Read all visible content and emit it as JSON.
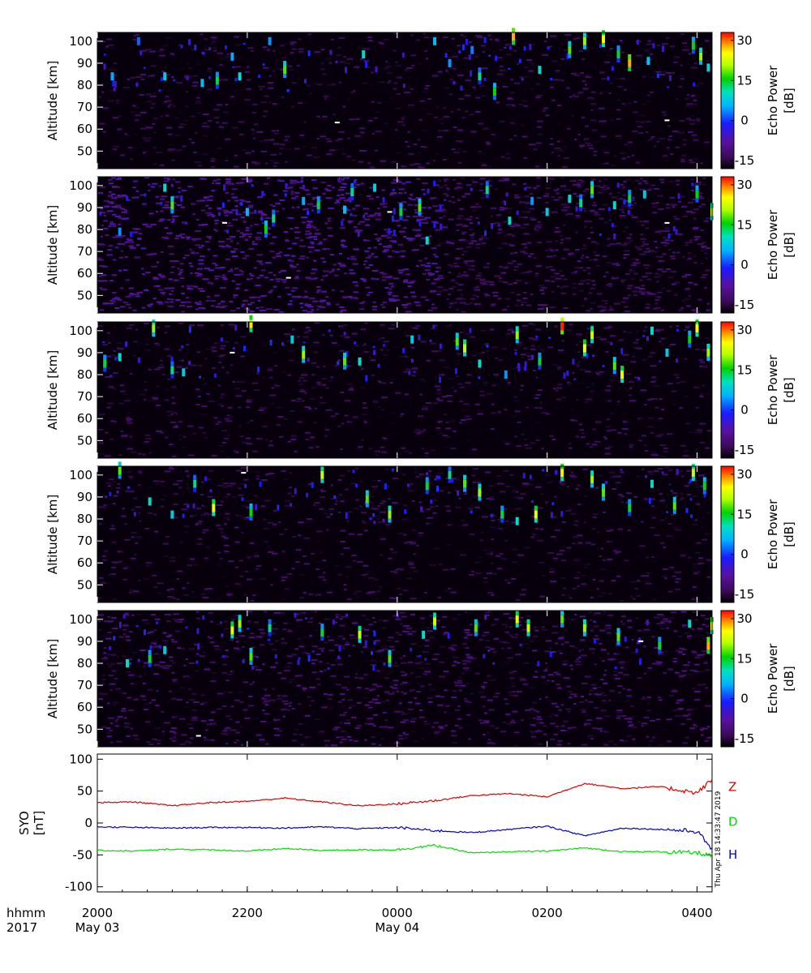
{
  "chart_data": [
    {
      "type": "heatmap",
      "panel": 1,
      "ylabel": "Altitude [km]",
      "yticks": [
        50,
        60,
        70,
        80,
        90,
        100
      ],
      "ylim": [
        42,
        104
      ],
      "xlim": [
        0,
        8
      ],
      "colorbar": {
        "label": "Echo Power [dB]",
        "ticks": [
          30,
          15,
          0,
          -15
        ],
        "range": [
          -18,
          33
        ]
      },
      "background_level": "low",
      "echoes": [
        {
          "t": 0.2,
          "alt": 84,
          "p": 5
        },
        {
          "t": 0.55,
          "alt": 100,
          "p": 2
        },
        {
          "t": 0.9,
          "alt": 84,
          "p": 8
        },
        {
          "t": 1.4,
          "alt": 81,
          "p": 6
        },
        {
          "t": 1.6,
          "alt": 82,
          "p": 14
        },
        {
          "t": 1.8,
          "alt": 93,
          "p": 5
        },
        {
          "t": 1.9,
          "alt": 84,
          "p": 10
        },
        {
          "t": 2.3,
          "alt": 100,
          "p": 4
        },
        {
          "t": 2.5,
          "alt": 87,
          "p": 18
        },
        {
          "t": 3.2,
          "alt": 63,
          "p": 33
        },
        {
          "t": 3.55,
          "alt": 94,
          "p": 10
        },
        {
          "t": 4.5,
          "alt": 100,
          "p": 6
        },
        {
          "t": 4.7,
          "alt": 90,
          "p": 4
        },
        {
          "t": 5.0,
          "alt": 96,
          "p": 3
        },
        {
          "t": 5.1,
          "alt": 84,
          "p": 12
        },
        {
          "t": 5.3,
          "alt": 77,
          "p": 16
        },
        {
          "t": 5.55,
          "alt": 102,
          "p": 28
        },
        {
          "t": 5.9,
          "alt": 87,
          "p": 10
        },
        {
          "t": 6.3,
          "alt": 96,
          "p": 18
        },
        {
          "t": 6.5,
          "alt": 100,
          "p": 20
        },
        {
          "t": 6.75,
          "alt": 101,
          "p": 25
        },
        {
          "t": 6.95,
          "alt": 94,
          "p": 14
        },
        {
          "t": 7.1,
          "alt": 90,
          "p": 28
        },
        {
          "t": 7.35,
          "alt": 91,
          "p": 7
        },
        {
          "t": 7.6,
          "alt": 64,
          "p": 33
        },
        {
          "t": 7.95,
          "alt": 98,
          "p": 15
        },
        {
          "t": 8.05,
          "alt": 93,
          "p": 20
        },
        {
          "t": 8.15,
          "alt": 88,
          "p": 9
        }
      ]
    },
    {
      "type": "heatmap",
      "panel": 2,
      "ylabel": "Altitude [km]",
      "yticks": [
        50,
        60,
        70,
        80,
        90,
        100
      ],
      "ylim": [
        42,
        104
      ],
      "xlim": [
        0,
        8
      ],
      "colorbar": {
        "label": "Echo Power [dB]",
        "ticks": [
          30,
          15,
          0,
          -15
        ],
        "range": [
          -18,
          33
        ]
      },
      "background_level": "elevated",
      "echoes": [
        {
          "t": 0.3,
          "alt": 79,
          "p": 4
        },
        {
          "t": 0.9,
          "alt": 99,
          "p": 10
        },
        {
          "t": 1.0,
          "alt": 91,
          "p": 18
        },
        {
          "t": 1.7,
          "alt": 83,
          "p": 33
        },
        {
          "t": 2.0,
          "alt": 88,
          "p": 6
        },
        {
          "t": 2.25,
          "alt": 80,
          "p": 16
        },
        {
          "t": 2.35,
          "alt": 85,
          "p": 12
        },
        {
          "t": 2.55,
          "alt": 58,
          "p": 33
        },
        {
          "t": 2.75,
          "alt": 93,
          "p": 5
        },
        {
          "t": 2.95,
          "alt": 91,
          "p": 14
        },
        {
          "t": 3.3,
          "alt": 89,
          "p": 7
        },
        {
          "t": 3.4,
          "alt": 97,
          "p": 12
        },
        {
          "t": 3.7,
          "alt": 99,
          "p": 8
        },
        {
          "t": 3.9,
          "alt": 88,
          "p": 33
        },
        {
          "t": 4.05,
          "alt": 88,
          "p": 14
        },
        {
          "t": 4.3,
          "alt": 90,
          "p": 18
        },
        {
          "t": 4.4,
          "alt": 75,
          "p": 10
        },
        {
          "t": 5.2,
          "alt": 98,
          "p": 12
        },
        {
          "t": 5.5,
          "alt": 84,
          "p": 10
        },
        {
          "t": 5.8,
          "alt": 93,
          "p": 4
        },
        {
          "t": 6.0,
          "alt": 88,
          "p": 8
        },
        {
          "t": 6.3,
          "alt": 94,
          "p": 10
        },
        {
          "t": 6.45,
          "alt": 92,
          "p": 12
        },
        {
          "t": 6.6,
          "alt": 98,
          "p": 18
        },
        {
          "t": 6.9,
          "alt": 91,
          "p": 10
        },
        {
          "t": 7.1,
          "alt": 94,
          "p": 14
        },
        {
          "t": 7.3,
          "alt": 96,
          "p": 8
        },
        {
          "t": 7.6,
          "alt": 83,
          "p": 33
        },
        {
          "t": 8.0,
          "alt": 96,
          "p": 15
        },
        {
          "t": 8.2,
          "alt": 88,
          "p": 22
        }
      ]
    },
    {
      "type": "heatmap",
      "panel": 3,
      "ylabel": "Altitude [km]",
      "yticks": [
        50,
        60,
        70,
        80,
        90,
        100
      ],
      "ylim": [
        42,
        104
      ],
      "xlim": [
        0,
        8
      ],
      "colorbar": {
        "label": "Echo Power [dB]",
        "ticks": [
          30,
          15,
          0,
          -15
        ],
        "range": [
          -18,
          33
        ]
      },
      "background_level": "low",
      "echoes": [
        {
          "t": 0.1,
          "alt": 85,
          "p": 14
        },
        {
          "t": 0.3,
          "alt": 88,
          "p": 10
        },
        {
          "t": 0.75,
          "alt": 101,
          "p": 20
        },
        {
          "t": 1.0,
          "alt": 82,
          "p": 12
        },
        {
          "t": 1.15,
          "alt": 81,
          "p": 8
        },
        {
          "t": 1.8,
          "alt": 90,
          "p": 33
        },
        {
          "t": 2.05,
          "alt": 103,
          "p": 26
        },
        {
          "t": 2.6,
          "alt": 96,
          "p": 8
        },
        {
          "t": 2.75,
          "alt": 89,
          "p": 20
        },
        {
          "t": 3.3,
          "alt": 86,
          "p": 18
        },
        {
          "t": 3.5,
          "alt": 86,
          "p": 10
        },
        {
          "t": 4.2,
          "alt": 96,
          "p": 8
        },
        {
          "t": 4.8,
          "alt": 95,
          "p": 18
        },
        {
          "t": 4.9,
          "alt": 92,
          "p": 22
        },
        {
          "t": 5.1,
          "alt": 85,
          "p": 10
        },
        {
          "t": 5.45,
          "alt": 80,
          "p": 4
        },
        {
          "t": 5.6,
          "alt": 98,
          "p": 20
        },
        {
          "t": 5.9,
          "alt": 86,
          "p": 14
        },
        {
          "t": 6.2,
          "alt": 102,
          "p": 32
        },
        {
          "t": 6.5,
          "alt": 92,
          "p": 25
        },
        {
          "t": 6.6,
          "alt": 98,
          "p": 22
        },
        {
          "t": 6.9,
          "alt": 84,
          "p": 18
        },
        {
          "t": 7.0,
          "alt": 80,
          "p": 24
        },
        {
          "t": 7.4,
          "alt": 100,
          "p": 10
        },
        {
          "t": 7.6,
          "alt": 90,
          "p": 8
        },
        {
          "t": 7.9,
          "alt": 96,
          "p": 15
        },
        {
          "t": 8.0,
          "alt": 101,
          "p": 25
        },
        {
          "t": 8.15,
          "alt": 90,
          "p": 20
        }
      ]
    },
    {
      "type": "heatmap",
      "panel": 4,
      "ylabel": "Altitude [km]",
      "yticks": [
        50,
        60,
        70,
        80,
        90,
        100
      ],
      "ylim": [
        42,
        104
      ],
      "xlim": [
        0,
        8
      ],
      "colorbar": {
        "label": "Echo Power [dB]",
        "ticks": [
          30,
          15,
          0,
          -15
        ],
        "range": [
          -18,
          33
        ]
      },
      "background_level": "low",
      "echoes": [
        {
          "t": 0.3,
          "alt": 102,
          "p": 18
        },
        {
          "t": 0.7,
          "alt": 88,
          "p": 10
        },
        {
          "t": 1.0,
          "alt": 82,
          "p": 8
        },
        {
          "t": 1.3,
          "alt": 96,
          "p": 12
        },
        {
          "t": 1.55,
          "alt": 85,
          "p": 24
        },
        {
          "t": 1.95,
          "alt": 101,
          "p": 33
        },
        {
          "t": 2.05,
          "alt": 83,
          "p": 16
        },
        {
          "t": 3.0,
          "alt": 100,
          "p": 22
        },
        {
          "t": 3.6,
          "alt": 89,
          "p": 18
        },
        {
          "t": 3.9,
          "alt": 82,
          "p": 20
        },
        {
          "t": 4.4,
          "alt": 95,
          "p": 14
        },
        {
          "t": 4.7,
          "alt": 100,
          "p": 12
        },
        {
          "t": 4.9,
          "alt": 96,
          "p": 18
        },
        {
          "t": 5.1,
          "alt": 92,
          "p": 20
        },
        {
          "t": 5.4,
          "alt": 82,
          "p": 14
        },
        {
          "t": 5.6,
          "alt": 79,
          "p": 10
        },
        {
          "t": 5.85,
          "alt": 82,
          "p": 24
        },
        {
          "t": 6.2,
          "alt": 101,
          "p": 26
        },
        {
          "t": 6.6,
          "alt": 98,
          "p": 20
        },
        {
          "t": 6.75,
          "alt": 92,
          "p": 18
        },
        {
          "t": 7.1,
          "alt": 85,
          "p": 14
        },
        {
          "t": 7.4,
          "alt": 96,
          "p": 10
        },
        {
          "t": 7.7,
          "alt": 86,
          "p": 18
        },
        {
          "t": 7.95,
          "alt": 101,
          "p": 22
        },
        {
          "t": 8.1,
          "alt": 95,
          "p": 16
        }
      ]
    },
    {
      "type": "heatmap",
      "panel": 5,
      "ylabel": "Altitude [km]",
      "yticks": [
        50,
        60,
        70,
        80,
        90,
        100
      ],
      "ylim": [
        42,
        104
      ],
      "xlim": [
        0,
        8
      ],
      "colorbar": {
        "label": "Echo Power [dB]",
        "ticks": [
          30,
          15,
          0,
          -15
        ],
        "range": [
          -18,
          33
        ]
      },
      "background_level": "medium",
      "echoes": [
        {
          "t": 0.4,
          "alt": 80,
          "p": 10
        },
        {
          "t": 0.7,
          "alt": 82,
          "p": 14
        },
        {
          "t": 0.9,
          "alt": 86,
          "p": 8
        },
        {
          "t": 1.35,
          "alt": 47,
          "p": 33
        },
        {
          "t": 1.8,
          "alt": 95,
          "p": 24
        },
        {
          "t": 1.9,
          "alt": 98,
          "p": 20
        },
        {
          "t": 2.05,
          "alt": 83,
          "p": 18
        },
        {
          "t": 2.3,
          "alt": 96,
          "p": 12
        },
        {
          "t": 3.0,
          "alt": 94,
          "p": 14
        },
        {
          "t": 3.5,
          "alt": 93,
          "p": 22
        },
        {
          "t": 3.9,
          "alt": 82,
          "p": 18
        },
        {
          "t": 4.35,
          "alt": 93,
          "p": 10
        },
        {
          "t": 4.5,
          "alt": 99,
          "p": 22
        },
        {
          "t": 5.05,
          "alt": 96,
          "p": 18
        },
        {
          "t": 5.6,
          "alt": 100,
          "p": 24
        },
        {
          "t": 5.75,
          "alt": 96,
          "p": 22
        },
        {
          "t": 6.2,
          "alt": 100,
          "p": 18
        },
        {
          "t": 6.5,
          "alt": 96,
          "p": 20
        },
        {
          "t": 6.95,
          "alt": 92,
          "p": 18
        },
        {
          "t": 7.25,
          "alt": 90,
          "p": 33
        },
        {
          "t": 7.5,
          "alt": 88,
          "p": 14
        },
        {
          "t": 7.9,
          "alt": 98,
          "p": 10
        },
        {
          "t": 8.15,
          "alt": 88,
          "p": 28
        },
        {
          "t": 8.2,
          "alt": 97,
          "p": 25
        }
      ]
    },
    {
      "type": "line",
      "panel": 6,
      "ylabel": "SYO [nT]",
      "ylim": [
        -108,
        108
      ],
      "yticks": [
        100,
        50,
        0,
        -50,
        -100
      ],
      "xlim": [
        0,
        8
      ],
      "x_unit": "hours after 2000 UT, 2017 May 03",
      "series": [
        {
          "name": "Z",
          "color": "#dd0000",
          "x": [
            0,
            0.5,
            1,
            1.5,
            2,
            2.5,
            3,
            3.5,
            4,
            4.5,
            5,
            5.5,
            6,
            6.5,
            7,
            7.5,
            8,
            8.2
          ],
          "y": [
            32,
            33,
            27,
            32,
            34,
            39,
            33,
            27,
            30,
            35,
            43,
            46,
            41,
            62,
            54,
            57,
            47,
            68
          ]
        },
        {
          "name": "D",
          "color": "#0000cc",
          "x": [
            0,
            0.5,
            1,
            1.5,
            2,
            2.5,
            3,
            3.5,
            4,
            4.5,
            5,
            5.5,
            6,
            6.5,
            7,
            7.5,
            8,
            8.2
          ],
          "y": [
            -6,
            -7,
            -8,
            -7,
            -7,
            -8,
            -6,
            -9,
            -7,
            -12,
            -15,
            -10,
            -5,
            -20,
            -8,
            -10,
            -13,
            -41
          ]
        },
        {
          "name": "H",
          "color": "#00dd00",
          "x": [
            0,
            0.5,
            1,
            1.5,
            2,
            2.5,
            3,
            3.5,
            4,
            4.5,
            5,
            5.5,
            6,
            6.5,
            7,
            7.5,
            8,
            8.2
          ],
          "y": [
            -43,
            -44,
            -41,
            -42,
            -44,
            -40,
            -43,
            -42,
            -42,
            -35,
            -47,
            -45,
            -44,
            -39,
            -45,
            -45,
            -47,
            -51
          ]
        }
      ],
      "series_label_colors": {
        "Z": "#dd0000",
        "D": "#00dd00",
        "H": "#0000cc"
      },
      "timestamp": "Thu Apr 18 14:33:47 2019"
    }
  ],
  "xaxis": {
    "row1_label": "hhmm",
    "row2_label": "2017",
    "ticks": [
      {
        "t": 0,
        "time": "2000",
        "date": "May 03"
      },
      {
        "t": 2,
        "time": "2200",
        "date": ""
      },
      {
        "t": 4,
        "time": "0000",
        "date": "May 04"
      },
      {
        "t": 6,
        "time": "0200",
        "date": ""
      },
      {
        "t": 8,
        "time": "0400",
        "date": ""
      }
    ]
  }
}
